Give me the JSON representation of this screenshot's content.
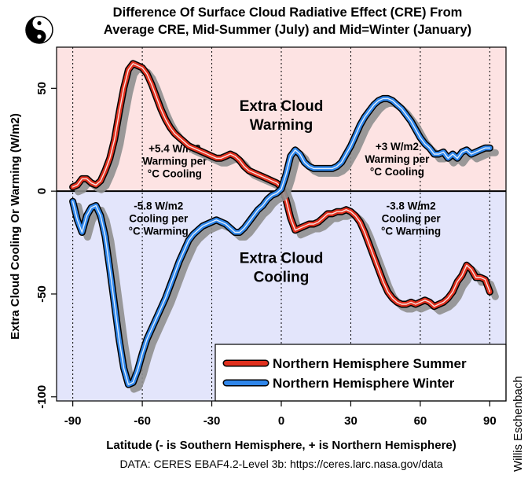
{
  "colors": {
    "warm_band": "#fde3e3",
    "cool_band": "#e3e5fb",
    "summer": "#e0301e",
    "winter": "#2f86ea",
    "shadow": "#8f8f8f",
    "outline": "#000000"
  },
  "logo": {
    "name": "yin-yang-icon"
  },
  "chart_data": {
    "type": "line",
    "title": "Difference Of Surface Cloud Radiative Effect (CRE) From Average CRE, Mid-Summer (July) and Mid=Winter (January)",
    "title_lines": [
      "Difference Of Surface Cloud Radiative Effect (CRE) From",
      "Average CRE, Mid-Summer (July) and Mid=Winter (January)"
    ],
    "xlabel": "Latitude (- is Southern Hemisphere, + is Northern Hemisphere)",
    "ylabel": "Extra Cloud Cooling Or Warming (W/m2)",
    "xlim": [
      -97,
      97
    ],
    "ylim": [
      -102,
      70
    ],
    "xticks": [
      -90,
      -60,
      -30,
      0,
      30,
      60,
      90
    ],
    "yticks": [
      50,
      0,
      -50,
      -100
    ],
    "vgrid": [
      -90,
      -60,
      -30,
      0,
      30,
      60,
      90
    ],
    "zero_line": true,
    "bands": [
      {
        "name": "warming",
        "y0": 0,
        "y1": 70
      },
      {
        "name": "cooling",
        "y0": -102,
        "y1": 0
      }
    ],
    "regions": [
      {
        "lines": [
          "Extra Cloud",
          "Warming"
        ],
        "x": 0,
        "y": 39
      },
      {
        "lines": [
          "Extra Cloud",
          "Cooling"
        ],
        "x": 0,
        "y": -35
      }
    ],
    "annotations": [
      {
        "lines": [
          "+5.4 W/m2",
          "Warming per",
          "°C Cooling"
        ],
        "x": -46,
        "y": 19
      },
      {
        "lines": [
          "-5.8 W/m2",
          "Cooling per",
          "°C Warming"
        ],
        "x": -53,
        "y": -9
      },
      {
        "lines": [
          "+3 W/m2",
          "Warming per",
          "°C Cooling"
        ],
        "x": 50,
        "y": 20
      },
      {
        "lines": [
          "-3.8 W/m2",
          "Cooling per",
          "°C Warming"
        ],
        "x": 56,
        "y": -9
      }
    ],
    "legend": {
      "placement": "bottom-right"
    },
    "series": [
      {
        "name": "Northern Hemisphere Summer",
        "color": "#e0301e",
        "x": [
          -90,
          -88,
          -86,
          -84,
          -82,
          -80,
          -78,
          -76,
          -74,
          -72,
          -70,
          -68,
          -66,
          -64,
          -62,
          -60,
          -58,
          -56,
          -54,
          -52,
          -50,
          -48,
          -46,
          -44,
          -42,
          -40,
          -38,
          -36,
          -34,
          -32,
          -30,
          -28,
          -26,
          -24,
          -22,
          -20,
          -18,
          -16,
          -14,
          -12,
          -10,
          -8,
          -6,
          -4,
          -2,
          0,
          2,
          4,
          6,
          8,
          10,
          12,
          14,
          16,
          18,
          20,
          22,
          24,
          26,
          28,
          30,
          32,
          34,
          36,
          38,
          40,
          42,
          44,
          46,
          48,
          50,
          52,
          54,
          56,
          58,
          60,
          62,
          64,
          66,
          68,
          70,
          72,
          74,
          76,
          78,
          80,
          82,
          84,
          86,
          88,
          90
        ],
        "values": [
          2,
          3,
          6,
          6,
          4,
          3,
          5,
          10,
          16,
          25,
          38,
          50,
          59,
          62,
          61,
          60,
          57,
          52,
          46,
          40,
          35,
          31,
          28,
          26,
          24,
          22,
          21,
          20,
          19,
          18,
          17,
          16,
          16,
          17,
          18,
          17,
          15,
          12,
          10,
          9,
          8,
          7,
          6,
          5,
          4,
          2,
          -4,
          -13,
          -19,
          -18,
          -17,
          -16,
          -16,
          -15,
          -13,
          -11,
          -11,
          -10,
          -10,
          -9,
          -10,
          -12,
          -15,
          -20,
          -26,
          -32,
          -38,
          -44,
          -49,
          -52,
          -54,
          -55,
          -55,
          -54,
          -55,
          -54,
          -53,
          -54,
          -56,
          -55,
          -54,
          -52,
          -49,
          -44,
          -41,
          -36,
          -38,
          -42,
          -42,
          -43,
          -49
        ]
      },
      {
        "name": "Northern Hemisphere Winter",
        "color": "#2f86ea",
        "x": [
          -90,
          -88,
          -86,
          -84,
          -82,
          -80,
          -78,
          -76,
          -74,
          -72,
          -70,
          -68,
          -66,
          -64,
          -62,
          -60,
          -58,
          -56,
          -54,
          -52,
          -50,
          -48,
          -46,
          -44,
          -42,
          -40,
          -38,
          -36,
          -34,
          -32,
          -30,
          -28,
          -26,
          -24,
          -22,
          -20,
          -18,
          -16,
          -14,
          -12,
          -10,
          -8,
          -6,
          -4,
          -2,
          0,
          2,
          4,
          6,
          8,
          10,
          12,
          14,
          16,
          18,
          20,
          22,
          24,
          26,
          28,
          30,
          32,
          34,
          36,
          38,
          40,
          42,
          44,
          46,
          48,
          50,
          52,
          54,
          56,
          58,
          60,
          62,
          64,
          66,
          68,
          70,
          72,
          74,
          76,
          78,
          80,
          82,
          84,
          86,
          88,
          90
        ],
        "values": [
          -5,
          -14,
          -20,
          -12,
          -8,
          -7,
          -12,
          -22,
          -38,
          -55,
          -72,
          -86,
          -94,
          -93,
          -87,
          -79,
          -72,
          -67,
          -62,
          -57,
          -52,
          -46,
          -40,
          -34,
          -29,
          -24,
          -21,
          -19,
          -17,
          -16,
          -15,
          -14,
          -15,
          -16,
          -18,
          -20,
          -20,
          -18,
          -15,
          -12,
          -9,
          -7,
          -4,
          -2,
          -1,
          1,
          8,
          17,
          20,
          18,
          14,
          12,
          11,
          11,
          11,
          11,
          11,
          12,
          14,
          18,
          22,
          27,
          32,
          36,
          39,
          42,
          44,
          45,
          45,
          44,
          42,
          40,
          37,
          34,
          30,
          26,
          23,
          21,
          18,
          18,
          19,
          16,
          18,
          16,
          19,
          20,
          18,
          19,
          20,
          21,
          21
        ]
      }
    ],
    "source": "DATA: CERES EBAF4.2-Level 3b: https://ceres.larc.nasa.gov/data",
    "credit": "Willis Eschenbach"
  }
}
